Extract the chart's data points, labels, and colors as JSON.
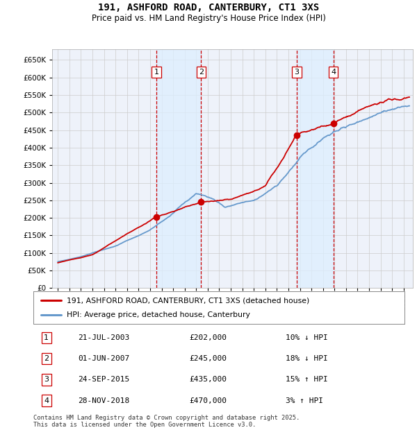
{
  "title": "191, ASHFORD ROAD, CANTERBURY, CT1 3XS",
  "subtitle": "Price paid vs. HM Land Registry's House Price Index (HPI)",
  "property_label": "191, ASHFORD ROAD, CANTERBURY, CT1 3XS (detached house)",
  "hpi_label": "HPI: Average price, detached house, Canterbury",
  "footer": "Contains HM Land Registry data © Crown copyright and database right 2025.\nThis data is licensed under the Open Government Licence v3.0.",
  "transactions": [
    {
      "num": 1,
      "date": "21-JUL-2003",
      "price": 202000,
      "pct": "10%",
      "dir": "↓",
      "year_x": 2003.55
    },
    {
      "num": 2,
      "date": "01-JUN-2007",
      "price": 245000,
      "pct": "18%",
      "dir": "↓",
      "year_x": 2007.42
    },
    {
      "num": 3,
      "date": "24-SEP-2015",
      "price": 435000,
      "pct": "15%",
      "dir": "↑",
      "year_x": 2015.73
    },
    {
      "num": 4,
      "date": "28-NOV-2018",
      "price": 470000,
      "pct": "3%",
      "dir": "↑",
      "year_x": 2018.9
    }
  ],
  "vline_color": "#cc0000",
  "shade_color": "#ddeeff",
  "property_color": "#cc0000",
  "hpi_color": "#6699cc",
  "point_color": "#cc0000",
  "ylim": [
    0,
    680000
  ],
  "yticks": [
    0,
    50000,
    100000,
    150000,
    200000,
    250000,
    300000,
    350000,
    400000,
    450000,
    500000,
    550000,
    600000,
    650000
  ],
  "xlim_start": 1994.5,
  "xlim_end": 2025.8,
  "plot_bg_color": "#eef2fa",
  "grid_color": "#cccccc",
  "hpi_anchor_years": [
    1995.0,
    1997.0,
    2000.0,
    2003.0,
    2004.5,
    2007.0,
    2008.5,
    2009.5,
    2012.0,
    2014.0,
    2016.0,
    2018.0,
    2020.0,
    2022.0,
    2024.0,
    2025.5
  ],
  "hpi_anchor_vals": [
    75000,
    90000,
    120000,
    165000,
    200000,
    270000,
    255000,
    230000,
    250000,
    290000,
    370000,
    430000,
    460000,
    490000,
    510000,
    520000
  ],
  "prop_anchor_years": [
    1995.0,
    1998.0,
    2001.0,
    2003.55,
    2007.42,
    2010.0,
    2013.0,
    2015.73,
    2018.9,
    2021.0,
    2023.0,
    2025.5
  ],
  "prop_anchor_vals": [
    72000,
    95000,
    155000,
    202000,
    245000,
    250000,
    290000,
    435000,
    470000,
    500000,
    530000,
    545000
  ]
}
